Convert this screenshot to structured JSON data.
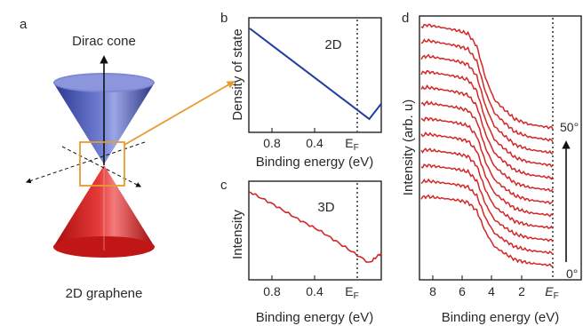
{
  "colors": {
    "cone_blue": "#3c48a8",
    "cone_red": "#d41818",
    "arrow_orange": "#e89a2e",
    "line_blue": "#1f3d9e",
    "line_red": "#d42626"
  },
  "panel_a": {
    "label": "a",
    "top_label": "Dirac cone",
    "bottom_label": "2D graphene"
  },
  "panel_b": {
    "label": "b",
    "inset": "2D",
    "ylabel": "Density of state",
    "xlabel": "Binding energy (eV)",
    "ticks": [
      "0.8",
      "0.4"
    ],
    "ef_label": "E",
    "ef_sub": "F"
  },
  "panel_c": {
    "label": "c",
    "inset": "3D",
    "ylabel": "Intensity",
    "xlabel": "Binding energy (eV)",
    "ticks": [
      "0.8",
      "0.4"
    ],
    "ef_label": "E",
    "ef_sub": "F"
  },
  "panel_d": {
    "label": "d",
    "ylabel": "Intensity (arb. u)",
    "xlabel": "Binding energy (eV)",
    "ticks": [
      "8",
      "6",
      "4",
      "2"
    ],
    "ef_label": "E",
    "ef_sub": "F",
    "angle_top": "50°",
    "angle_bottom": "0°"
  },
  "chart_data": [
    {
      "type": "line",
      "panel": "b",
      "title": "2D",
      "xlabel": "Binding energy (eV)",
      "ylabel": "Density of state",
      "x_reversed": true,
      "xlim": [
        1.0,
        -0.1
      ],
      "x": [
        1.0,
        0.8,
        0.6,
        0.4,
        0.2,
        0.0,
        -0.1
      ],
      "y": [
        1.0,
        0.8,
        0.6,
        0.4,
        0.2,
        0.0,
        0.17
      ]
    },
    {
      "type": "line",
      "panel": "c",
      "title": "3D",
      "xlabel": "Binding energy (eV)",
      "ylabel": "Intensity",
      "x_reversed": true,
      "xlim": [
        1.0,
        -0.1
      ],
      "x": [
        1.0,
        0.8,
        0.6,
        0.4,
        0.2,
        0.0,
        -0.1
      ],
      "y": [
        1.0,
        0.82,
        0.62,
        0.44,
        0.22,
        0.0,
        0.14
      ]
    },
    {
      "type": "line",
      "panel": "d",
      "xlabel": "Binding energy (eV)",
      "ylabel": "Intensity (arb. u)",
      "x_reversed": true,
      "xlim": [
        9,
        0
      ],
      "curves": 12,
      "angle_range": [
        "0°",
        "50°"
      ]
    }
  ]
}
